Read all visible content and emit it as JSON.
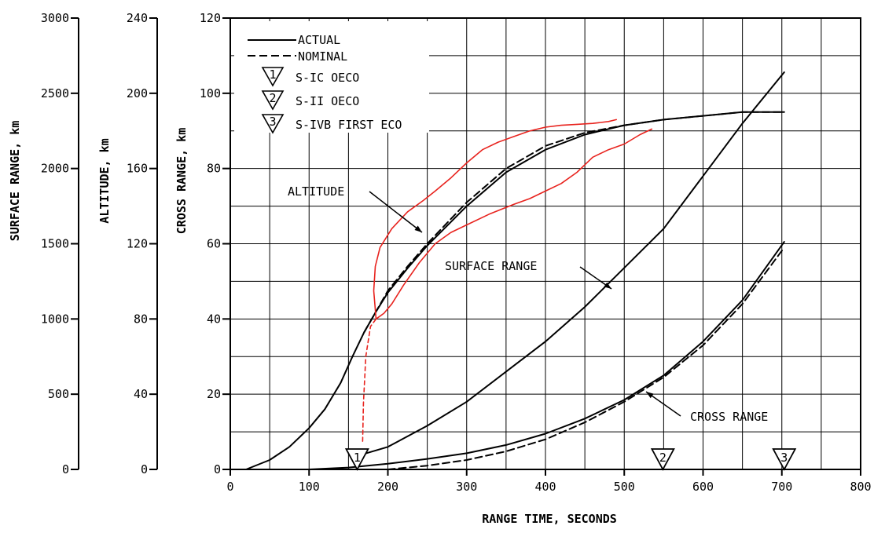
{
  "chart_data": {
    "type": "line",
    "x": {
      "label": "RANGE TIME, SECONDS",
      "min": 0,
      "max": 800,
      "ticks": [
        0,
        100,
        200,
        300,
        400,
        500,
        600,
        700,
        800
      ],
      "grid_step": 50
    },
    "axes": [
      {
        "id": "surface",
        "label": "SURFACE RANGE, km",
        "min": 0,
        "max": 3000,
        "ticks": [
          0,
          500,
          1000,
          1500,
          2000,
          2500,
          3000
        ]
      },
      {
        "id": "altitude",
        "label": "ALTITUDE, km",
        "min": 0,
        "max": 240,
        "ticks": [
          0,
          40,
          80,
          120,
          160,
          200,
          240
        ]
      },
      {
        "id": "cross",
        "label": "CROSS RANGE, km",
        "min": 0,
        "max": 120,
        "ticks": [
          0,
          20,
          40,
          60,
          80,
          100,
          120
        ]
      }
    ],
    "legend": {
      "actual": "ACTUAL",
      "nominal": "NOMINAL",
      "events": [
        {
          "num": "1",
          "label": "S-IC OECO"
        },
        {
          "num": "2",
          "label": "S-II OECO"
        },
        {
          "num": "3",
          "label": "S-IVB FIRST ECO"
        }
      ]
    },
    "annotations": {
      "altitude": "ALTITUDE",
      "surface": "SURFACE RANGE",
      "cross": "CROSS RANGE"
    },
    "event_markers": [
      {
        "num": "1",
        "t": 161
      },
      {
        "num": "2",
        "t": 549
      },
      {
        "num": "3",
        "t": 703
      }
    ],
    "series": [
      {
        "name": "ALTITUDE ACTUAL",
        "axis": "altitude",
        "style": "solid",
        "x": [
          20,
          50,
          75,
          100,
          120,
          140,
          155,
          170,
          185,
          200,
          225,
          250,
          300,
          350,
          400,
          450,
          500,
          550,
          600,
          650,
          703
        ],
        "y": [
          0,
          5,
          12,
          22,
          32,
          46,
          60,
          73,
          84,
          94,
          107,
          119,
          140,
          158,
          170,
          178,
          183,
          186,
          188,
          190,
          190
        ]
      },
      {
        "name": "ALTITUDE NOMINAL",
        "axis": "altitude",
        "style": "dashed",
        "x": [
          170,
          185,
          200,
          225,
          250,
          300,
          350,
          400,
          450,
          500,
          550,
          600,
          650,
          703
        ],
        "y": [
          73,
          84,
          95,
          108,
          120,
          142,
          160,
          172,
          179,
          183,
          186,
          188,
          190,
          190
        ]
      },
      {
        "name": "SURFACE RANGE ACTUAL",
        "axis": "surface",
        "style": "solid",
        "x": [
          161,
          200,
          250,
          300,
          350,
          400,
          450,
          500,
          550,
          600,
          650,
          703
        ],
        "y": [
          90,
          150,
          290,
          450,
          650,
          850,
          1080,
          1340,
          1600,
          1950,
          2300,
          2640
        ]
      },
      {
        "name": "CROSS RANGE ACTUAL",
        "axis": "cross",
        "style": "solid",
        "x": [
          100,
          150,
          200,
          250,
          300,
          350,
          400,
          450,
          500,
          550,
          600,
          650,
          703
        ],
        "y": [
          0,
          0.5,
          1.5,
          2.8,
          4.3,
          6.5,
          9.5,
          13.5,
          18.5,
          25,
          34,
          45,
          60.5
        ]
      },
      {
        "name": "CROSS RANGE NOMINAL",
        "axis": "cross",
        "style": "dashed",
        "x": [
          200,
          250,
          300,
          350,
          400,
          450,
          500,
          550,
          600,
          650,
          703
        ],
        "y": [
          0,
          1,
          2.5,
          4.8,
          8,
          12.5,
          18,
          24.5,
          33,
          44,
          59
        ]
      },
      {
        "name": "RED LOWER",
        "axis": "altitude",
        "style": "red",
        "x": [
          185,
          195,
          205,
          220,
          240,
          260,
          280,
          300,
          330,
          360,
          380,
          400,
          420,
          440,
          460,
          480,
          500,
          520,
          535
        ],
        "y": [
          80,
          83,
          88,
          98,
          110,
          120,
          126,
          130,
          136,
          141,
          144,
          148,
          152,
          158,
          166,
          170,
          173,
          178,
          181
        ]
      },
      {
        "name": "RED UPPER",
        "axis": "altitude",
        "style": "red",
        "x": [
          185,
          182,
          184,
          190,
          205,
          225,
          245,
          260,
          280,
          300,
          320,
          340,
          360,
          380,
          400,
          420,
          440,
          460,
          480,
          490
        ],
        "y": [
          80,
          95,
          108,
          118,
          128,
          137,
          143,
          148,
          155,
          163,
          170,
          174,
          177,
          180,
          182,
          183,
          183.5,
          184,
          185,
          186
        ]
      },
      {
        "name": "RED DASHED",
        "axis": "altitude",
        "style": "reddash",
        "x": [
          168,
          169,
          172,
          178,
          185
        ],
        "y": [
          15,
          35,
          60,
          76,
          80
        ]
      }
    ]
  }
}
